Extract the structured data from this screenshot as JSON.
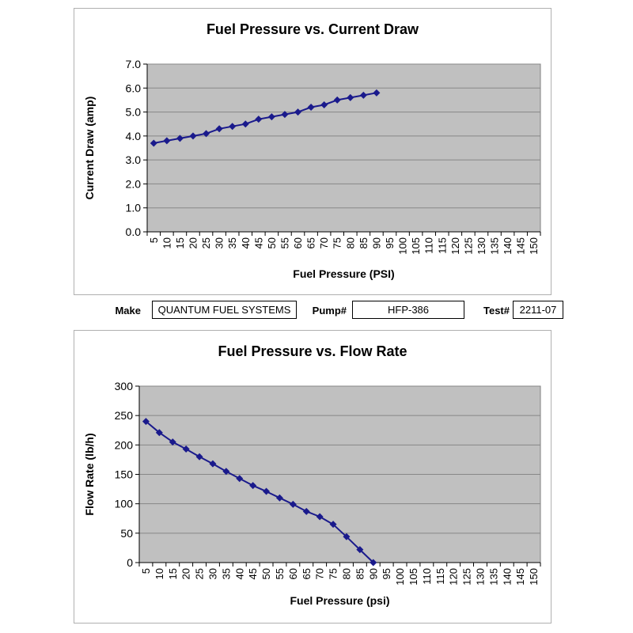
{
  "info_bar": {
    "fields": [
      {
        "label": "Make",
        "value": "QUANTUM FUEL SYSTEMS"
      },
      {
        "label": "Pump#",
        "value": "HFP-386"
      },
      {
        "label": "Test#",
        "value": "2211-07"
      }
    ]
  },
  "colors": {
    "series": "#1a1a8c",
    "plot_background": "#c0c0c0",
    "gridline": "#878787",
    "plot_border": "#808080",
    "axis": "#000000",
    "card_border": "#b0b0b0"
  },
  "chart_data": [
    {
      "type": "line",
      "title": "Fuel Pressure vs. Current Draw",
      "xlabel": "Fuel Pressure (PSI)",
      "ylabel": "Current Draw (amp)",
      "categories": [
        "5",
        "10",
        "15",
        "20",
        "25",
        "30",
        "35",
        "40",
        "45",
        "50",
        "55",
        "60",
        "65",
        "70",
        "75",
        "80",
        "85",
        "90",
        "95",
        "100",
        "105",
        "110",
        "115",
        "120",
        "125",
        "130",
        "135",
        "140",
        "145",
        "150"
      ],
      "series": [
        {
          "name": "Current Draw",
          "values": [
            3.7,
            3.8,
            3.9,
            4.0,
            4.1,
            4.3,
            4.4,
            4.5,
            4.7,
            4.8,
            4.9,
            5.0,
            5.2,
            5.3,
            5.5,
            5.6,
            5.7,
            5.8
          ]
        }
      ],
      "ylim": [
        0,
        7
      ],
      "yticks": [
        0,
        1,
        2,
        3,
        4,
        5,
        6,
        7
      ],
      "ytick_labels": [
        "0.0",
        "1.0",
        "2.0",
        "3.0",
        "4.0",
        "5.0",
        "6.0",
        "7.0"
      ],
      "grid": true,
      "legend": "none",
      "marker": "diamond"
    },
    {
      "type": "line",
      "title": "Fuel Pressure vs. Flow Rate",
      "xlabel": "Fuel Pressure (psi)",
      "ylabel": "Flow Rate (lb/h)",
      "categories": [
        "5",
        "10",
        "15",
        "20",
        "25",
        "30",
        "35",
        "40",
        "45",
        "50",
        "55",
        "60",
        "65",
        "70",
        "75",
        "80",
        "85",
        "90",
        "95",
        "100",
        "105",
        "110",
        "115",
        "120",
        "125",
        "130",
        "135",
        "140",
        "145",
        "150"
      ],
      "series": [
        {
          "name": "Flow Rate",
          "values": [
            240,
            221,
            205,
            193,
            180,
            168,
            155,
            143,
            131,
            121,
            110,
            99,
            87,
            78,
            65,
            44,
            22,
            0
          ]
        }
      ],
      "ylim": [
        0,
        300
      ],
      "yticks": [
        0,
        50,
        100,
        150,
        200,
        250,
        300
      ],
      "ytick_labels": [
        "0",
        "50",
        "100",
        "150",
        "200",
        "250",
        "300"
      ],
      "grid": true,
      "legend": "none",
      "marker": "diamond"
    }
  ]
}
